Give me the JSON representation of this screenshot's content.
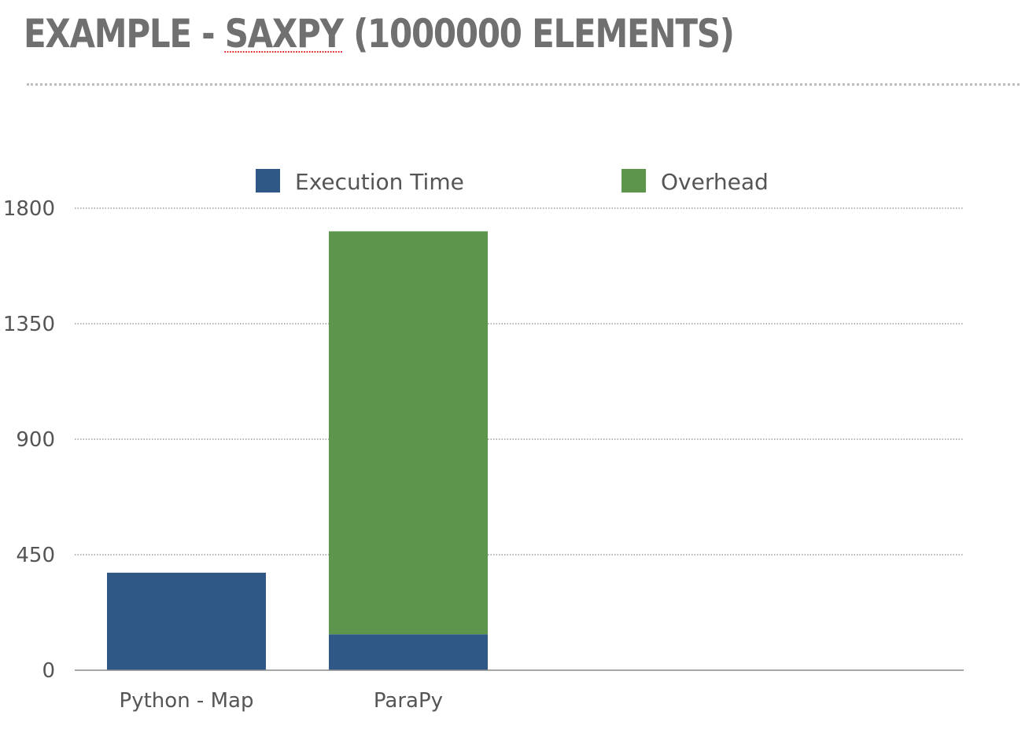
{
  "slide": {
    "title_prefix": "EXAMPLE - ",
    "title_highlight": "SAXPY",
    "title_suffix": " (1000000 ELEMENTS)"
  },
  "chart_data": {
    "type": "bar",
    "stacked": true,
    "categories": [
      "Python - Map",
      "ParaPy"
    ],
    "series": [
      {
        "name": "Execution Time",
        "values": [
          380,
          140
        ],
        "color": "#2f5887"
      },
      {
        "name": "Overhead",
        "values": [
          0,
          1570
        ],
        "color": "#5e954c"
      }
    ],
    "yticks": [
      0,
      450,
      900,
      1350,
      1800
    ],
    "ylim": [
      0,
      1800
    ],
    "grid": true,
    "legend_position": "top",
    "xlabel": "",
    "ylabel": ""
  }
}
